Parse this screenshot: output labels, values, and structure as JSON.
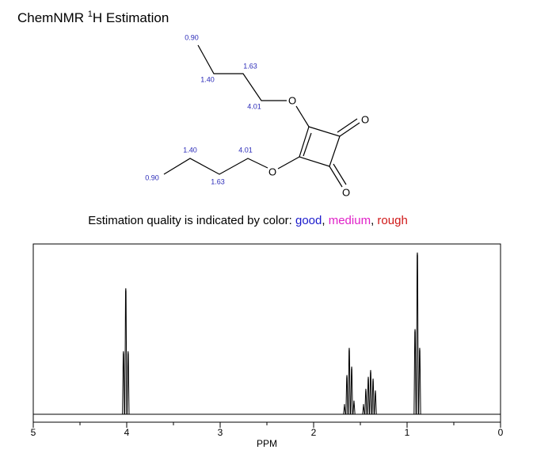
{
  "header": {
    "title": "ChemNMR ",
    "superscript": "1",
    "title_rest": "H Estimation"
  },
  "structure": {
    "atoms": [
      "O",
      "O",
      "O",
      "O"
    ],
    "shifts": [
      "0.90",
      "1.40",
      "1.63",
      "4.01",
      "1.40",
      "4.01",
      "0.90",
      "1.63"
    ]
  },
  "legend": {
    "text": "Estimation quality is indicated by color:",
    "separator": ",",
    "items": [
      {
        "label": "good",
        "color": "#1a1acc"
      },
      {
        "label": "medium",
        "color": "#e020c8"
      },
      {
        "label": "rough",
        "color": "#d01818"
      }
    ]
  },
  "chart_data": {
    "type": "stick",
    "x_label": "PPM",
    "color": "#000000",
    "x": [
      4.035,
      4.01,
      3.985,
      0.915,
      0.89,
      0.865,
      1.67,
      1.644,
      1.619,
      1.593,
      1.568,
      1.466,
      1.441,
      1.415,
      1.39,
      1.364,
      1.339
    ],
    "values": [
      37,
      74,
      37,
      50,
      95,
      39,
      6,
      23,
      39,
      28,
      8,
      6,
      15,
      22,
      26,
      21,
      14
    ],
    "xlim": [
      5,
      0
    ],
    "ylim": [
      0,
      100
    ],
    "xticks": [
      5,
      4,
      3,
      2,
      1,
      0
    ],
    "xminorticks": [
      4.5,
      3.5,
      2.5,
      1.5,
      0.5
    ]
  }
}
